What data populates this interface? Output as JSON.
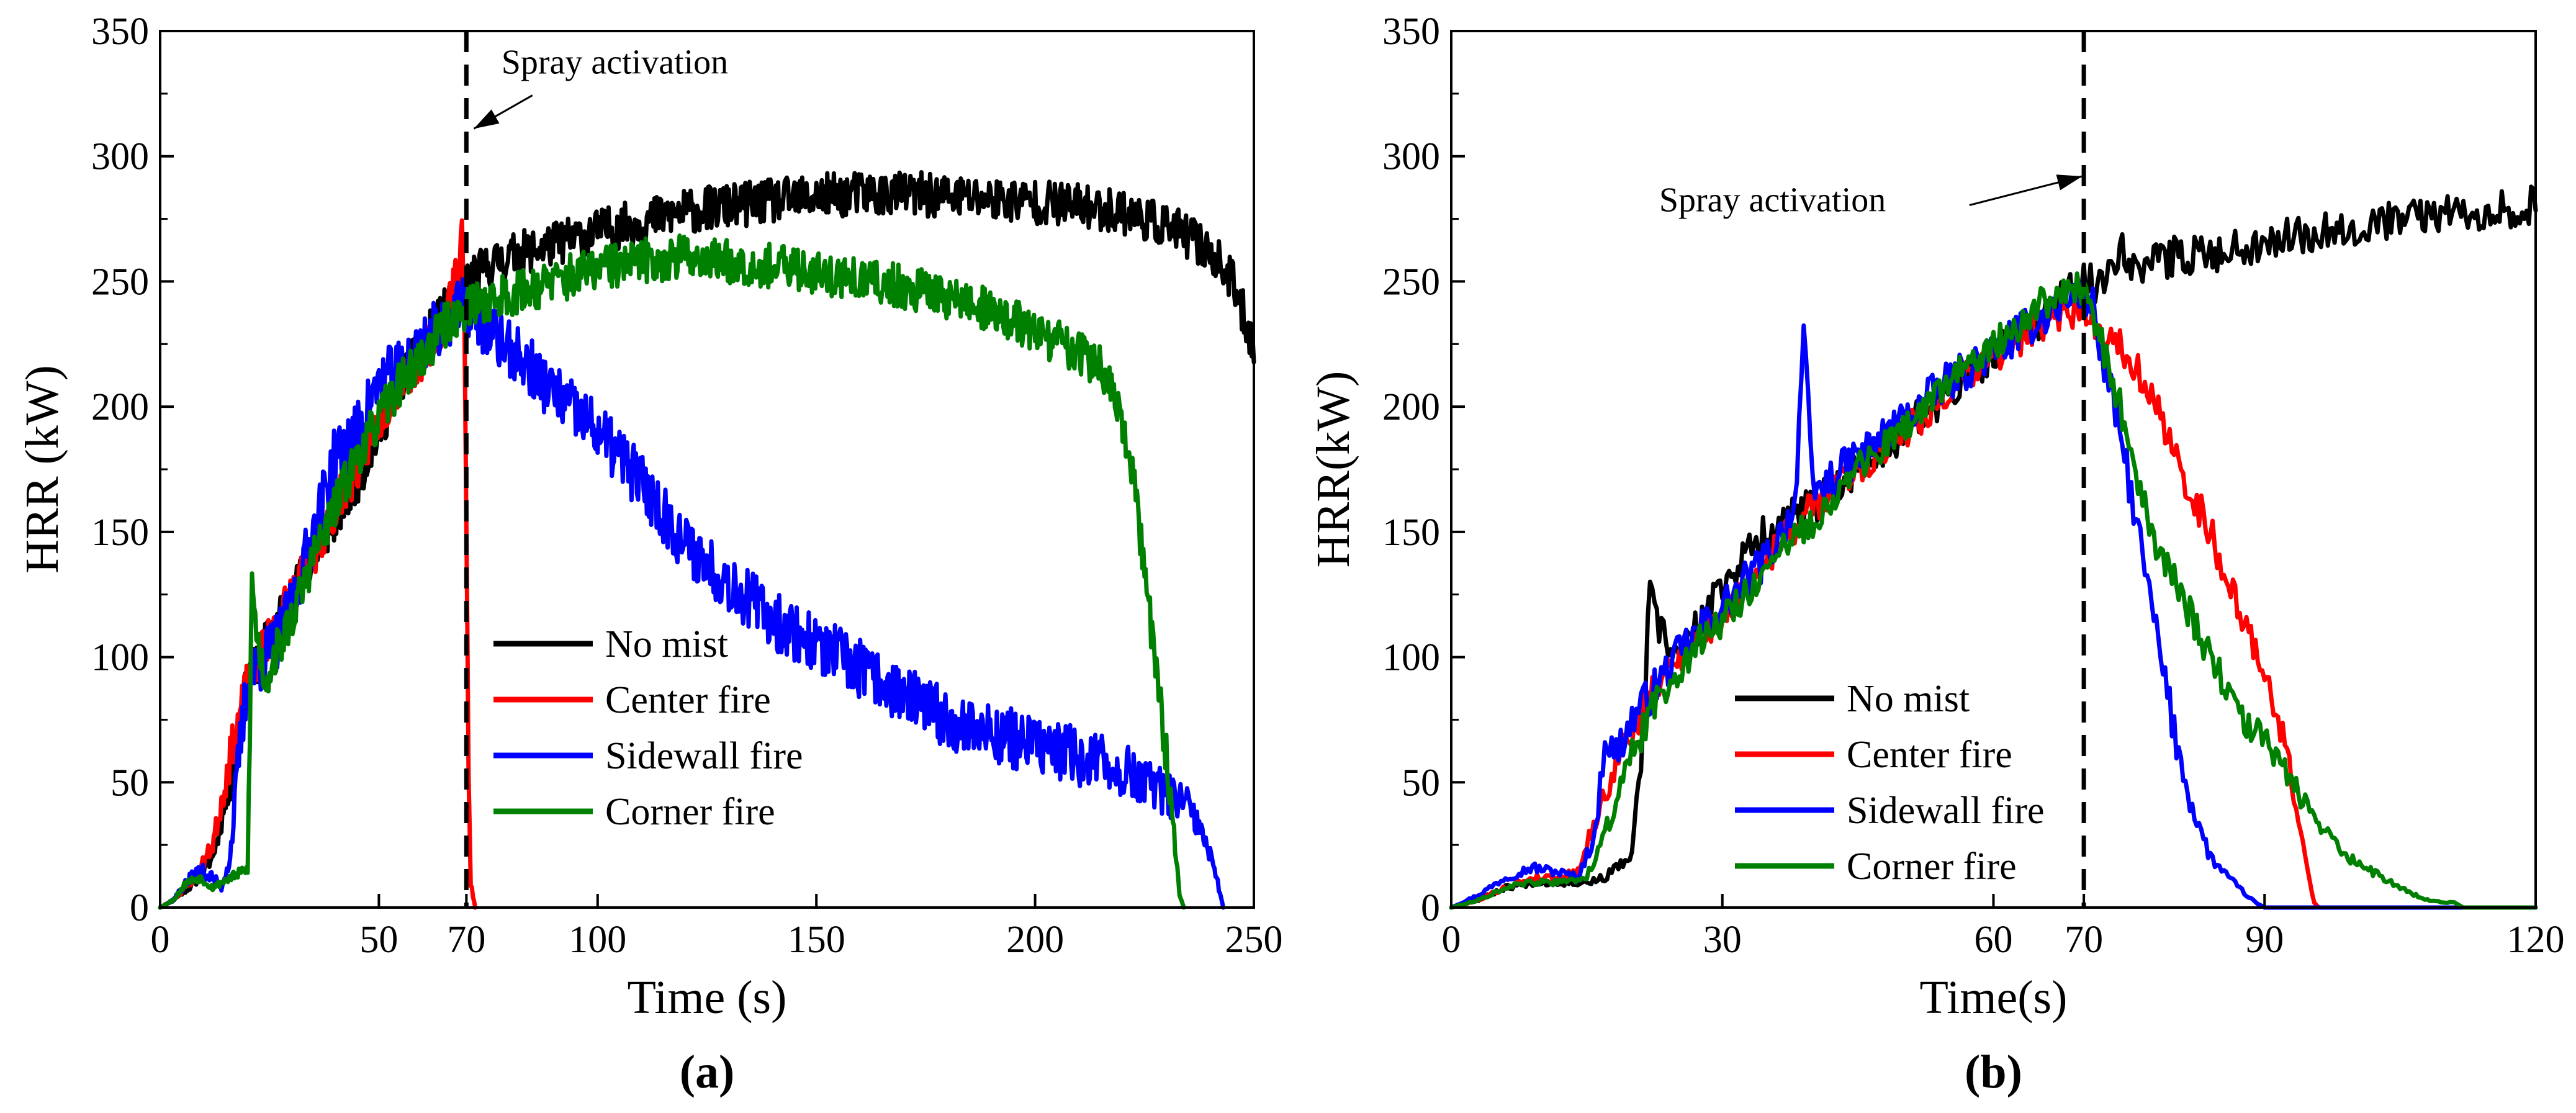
{
  "chart_data": [
    {
      "type": "line",
      "panel_label": "(a)",
      "xlabel": "Time (s)",
      "ylabel": "HRR (kW)",
      "xlim": [
        0,
        250
      ],
      "ylim": [
        0,
        350
      ],
      "xticks": [
        0,
        50,
        70,
        100,
        150,
        200,
        250
      ],
      "xtick_labels": [
        "0",
        "50",
        "70",
        "100",
        "150",
        "200",
        "250"
      ],
      "yticks": [
        0,
        50,
        100,
        150,
        200,
        250,
        300,
        350
      ],
      "ytick_labels": [
        "0",
        "50",
        "100",
        "150",
        "200",
        "250",
        "300",
        "350"
      ],
      "activation_time": 70,
      "annotation": {
        "text": "Spray activation",
        "text_at": [
          78,
          333
        ],
        "arrow_to": [
          70,
          311
        ]
      },
      "legend_position": "lower-center",
      "series": [
        {
          "name": "No mist",
          "color": "#000000",
          "noise": 9,
          "seed": 11,
          "x": [
            0,
            3,
            8,
            12,
            16,
            20,
            24,
            30,
            35,
            40,
            45,
            50,
            55,
            60,
            65,
            70,
            75,
            80,
            90,
            100,
            110,
            120,
            130,
            140,
            150,
            160,
            170,
            180,
            190,
            200,
            210,
            220,
            230,
            235,
            240,
            245,
            250
          ],
          "y": [
            0,
            3,
            10,
            20,
            50,
            90,
            105,
            125,
            140,
            155,
            170,
            190,
            210,
            225,
            238,
            250,
            256,
            260,
            265,
            270,
            274,
            278,
            280,
            282,
            284,
            285,
            285,
            284,
            283,
            282,
            280,
            278,
            272,
            268,
            262,
            250,
            225
          ]
        },
        {
          "name": "Center fire",
          "color": "#ff0000",
          "noise": 9,
          "seed": 23,
          "x": [
            0,
            3,
            8,
            12,
            16,
            20,
            24,
            30,
            35,
            40,
            45,
            50,
            55,
            60,
            65,
            68,
            69,
            69.5,
            70,
            70.5,
            71,
            72
          ],
          "y": [
            0,
            3,
            12,
            25,
            60,
            90,
            105,
            125,
            140,
            160,
            175,
            195,
            210,
            220,
            235,
            255,
            270,
            250,
            150,
            50,
            10,
            0
          ]
        },
        {
          "name": "Sidewall fire",
          "color": "#0000ff",
          "noise": 12,
          "seed": 37,
          "x": [
            0,
            3,
            6,
            9,
            12,
            14,
            16,
            18,
            20,
            24,
            28,
            30,
            35,
            40,
            45,
            50,
            55,
            60,
            65,
            70,
            75,
            80,
            85,
            90,
            100,
            110,
            120,
            130,
            140,
            150,
            160,
            170,
            180,
            190,
            200,
            210,
            220,
            225,
            230,
            235,
            238,
            240,
            242,
            243
          ],
          "y": [
            0,
            3,
            10,
            15,
            12,
            8,
            20,
            60,
            90,
            100,
            110,
            120,
            150,
            180,
            190,
            210,
            215,
            225,
            235,
            240,
            230,
            222,
            215,
            205,
            190,
            170,
            145,
            130,
            115,
            105,
            95,
            85,
            75,
            70,
            65,
            60,
            55,
            50,
            45,
            40,
            30,
            20,
            8,
            0
          ]
        },
        {
          "name": "Corner fire",
          "color": "#008000",
          "noise": 9,
          "seed": 53,
          "x": [
            0,
            3,
            6,
            9,
            12,
            16,
            20,
            21,
            22,
            24,
            26,
            30,
            35,
            40,
            45,
            50,
            55,
            60,
            65,
            70,
            80,
            90,
            100,
            110,
            120,
            130,
            140,
            150,
            160,
            170,
            180,
            190,
            200,
            210,
            215,
            218,
            220,
            222,
            224,
            226,
            228,
            230,
            232,
            233,
            234
          ],
          "y": [
            0,
            3,
            10,
            12,
            8,
            12,
            15,
            130,
            110,
            90,
            100,
            115,
            140,
            160,
            180,
            195,
            210,
            220,
            232,
            240,
            245,
            250,
            255,
            258,
            260,
            258,
            256,
            254,
            250,
            248,
            244,
            238,
            230,
            222,
            215,
            205,
            190,
            175,
            150,
            120,
            90,
            60,
            25,
            5,
            0
          ]
        }
      ],
      "legend": [
        {
          "name": "No mist",
          "color": "#000000"
        },
        {
          "name": "Center fire",
          "color": "#ff0000"
        },
        {
          "name": "Sidewall fire",
          "color": "#0000ff"
        },
        {
          "name": "Corner fire",
          "color": "#008000"
        }
      ]
    },
    {
      "type": "line",
      "panel_label": "(b)",
      "xlabel": "Time(s)",
      "ylabel": "HRR(kW)",
      "xlim": [
        0,
        120
      ],
      "ylim": [
        0,
        350
      ],
      "xticks": [
        0,
        30,
        60,
        70,
        90,
        120
      ],
      "xtick_labels": [
        "0",
        "30",
        "60",
        "70",
        "90",
        "120"
      ],
      "yticks": [
        0,
        50,
        100,
        150,
        200,
        250,
        300,
        350
      ],
      "ytick_labels": [
        "0",
        "50",
        "100",
        "150",
        "200",
        "250",
        "300",
        "350"
      ],
      "activation_time": 70,
      "annotation": {
        "text": "Spray activation",
        "text_at": [
          23,
          278
        ],
        "arrow_to": [
          69,
          292
        ]
      },
      "legend_position": "lower-center",
      "series": [
        {
          "name": "No mist",
          "color": "#000000",
          "noise": 8,
          "seed": 67,
          "x": [
            0,
            3,
            6,
            9,
            12,
            15,
            17,
            19,
            20,
            21,
            22,
            23,
            25,
            28,
            30,
            35,
            40,
            45,
            50,
            55,
            60,
            65,
            70,
            72,
            74,
            76,
            78,
            80,
            85,
            90,
            95,
            100,
            105,
            110,
            115,
            120
          ],
          "y": [
            0,
            3,
            8,
            10,
            10,
            10,
            12,
            18,
            20,
            60,
            125,
            110,
            100,
            115,
            130,
            150,
            160,
            175,
            190,
            205,
            220,
            235,
            250,
            248,
            265,
            255,
            258,
            260,
            262,
            266,
            270,
            272,
            275,
            277,
            279,
            280
          ]
        },
        {
          "name": "Center fire",
          "color": "#ff0000",
          "noise": 7,
          "seed": 79,
          "x": [
            0,
            3,
            6,
            9,
            12,
            14,
            16,
            18,
            20,
            23,
            25,
            30,
            35,
            40,
            45,
            50,
            55,
            60,
            65,
            70,
            72,
            74,
            76,
            78,
            80,
            82,
            84,
            86,
            88,
            90,
            92,
            93,
            94,
            95,
            95.5,
            96,
            120
          ],
          "y": [
            0,
            3,
            8,
            12,
            12,
            15,
            35,
            55,
            70,
            90,
            100,
            115,
            140,
            160,
            175,
            190,
            205,
            220,
            232,
            240,
            230,
            225,
            215,
            200,
            180,
            165,
            150,
            130,
            110,
            95,
            70,
            50,
            30,
            10,
            2,
            0,
            0
          ]
        },
        {
          "name": "Sidewall fire",
          "color": "#0000ff",
          "noise": 8,
          "seed": 97,
          "x": [
            0,
            3,
            6,
            9,
            12,
            14,
            16,
            17,
            18,
            20,
            23,
            26,
            30,
            35,
            38,
            39,
            40,
            45,
            50,
            55,
            60,
            65,
            68,
            70,
            71,
            72,
            74,
            76,
            78,
            80,
            82,
            84,
            86,
            88,
            89,
            90,
            120
          ],
          "y": [
            0,
            5,
            12,
            16,
            14,
            12,
            30,
            70,
            60,
            75,
            90,
            105,
            120,
            140,
            160,
            230,
            165,
            180,
            195,
            210,
            222,
            235,
            242,
            245,
            240,
            220,
            190,
            150,
            110,
            70,
            40,
            20,
            12,
            5,
            2,
            0,
            0
          ]
        },
        {
          "name": "Corner fire",
          "color": "#008000",
          "noise": 7,
          "seed": 113,
          "x": [
            0,
            3,
            6,
            9,
            12,
            15,
            17,
            20,
            23,
            26,
            30,
            35,
            40,
            45,
            50,
            55,
            60,
            65,
            70,
            72,
            74,
            76,
            78,
            80,
            82,
            84,
            86,
            88,
            90,
            92,
            94,
            96,
            98,
            100,
            103,
            106,
            108,
            110,
            111,
            112,
            120
          ],
          "y": [
            0,
            3,
            8,
            10,
            10,
            12,
            30,
            60,
            85,
            100,
            115,
            135,
            155,
            175,
            190,
            210,
            225,
            240,
            248,
            225,
            200,
            170,
            145,
            130,
            115,
            100,
            85,
            75,
            65,
            55,
            45,
            35,
            25,
            18,
            12,
            6,
            3,
            2,
            2,
            0,
            0
          ]
        }
      ],
      "legend": [
        {
          "name": "No mist",
          "color": "#000000"
        },
        {
          "name": "Center fire",
          "color": "#ff0000"
        },
        {
          "name": "Sidewall fire",
          "color": "#0000ff"
        },
        {
          "name": "Corner fire",
          "color": "#008000"
        }
      ]
    }
  ]
}
